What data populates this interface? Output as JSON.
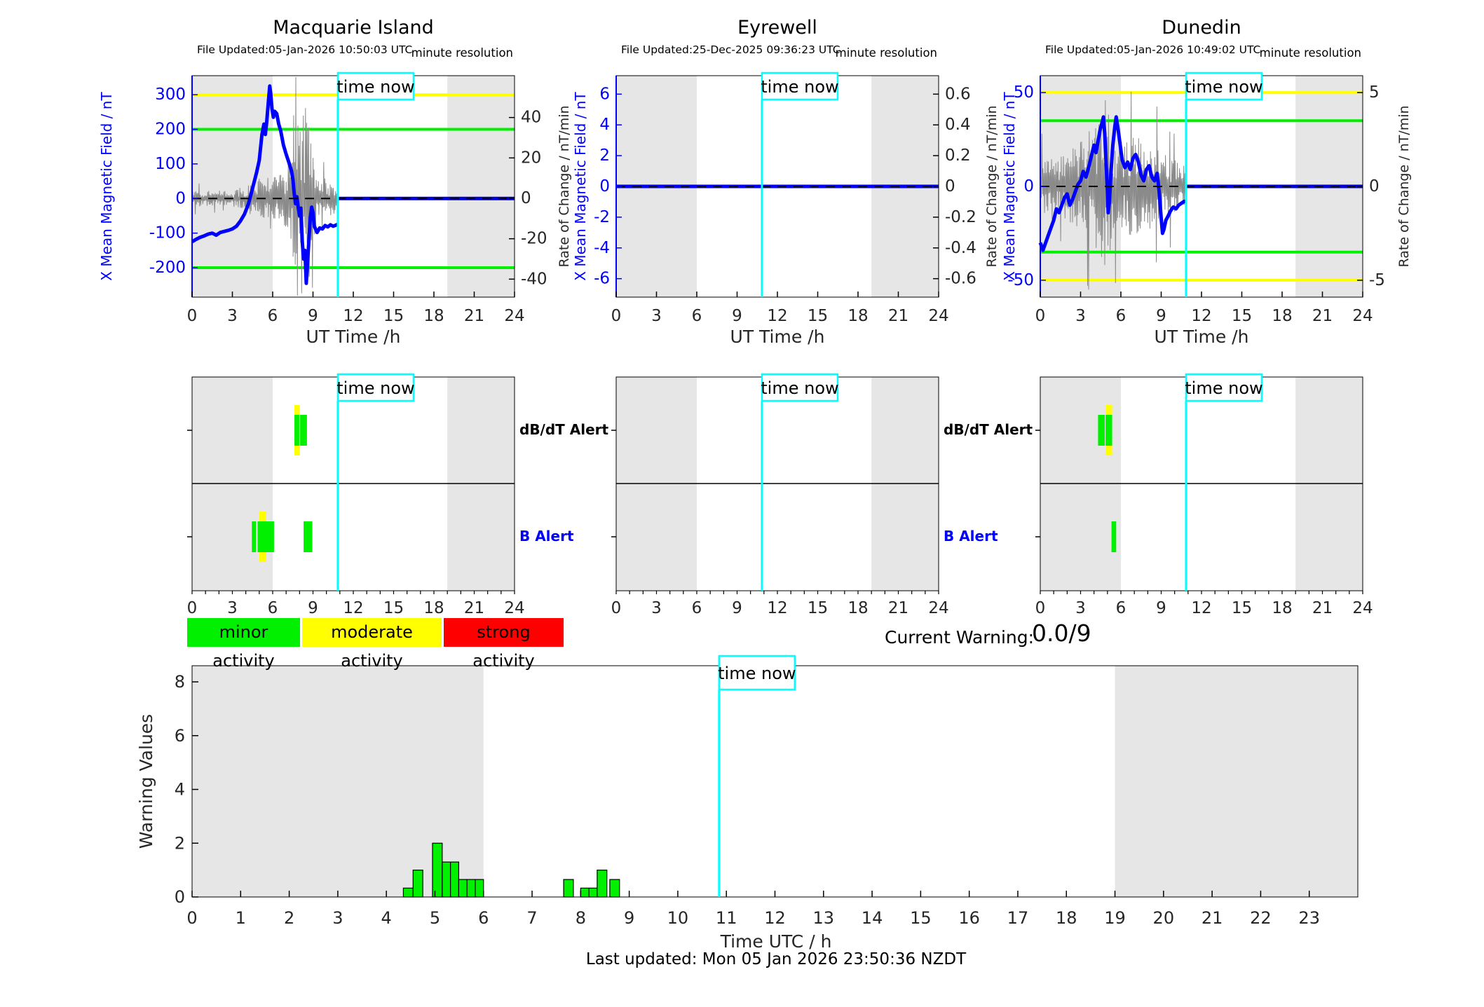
{
  "chart_data": {
    "time_now": {
      "label": "time now",
      "hour": 10.85
    },
    "night_shading_hours": [
      [
        0,
        6
      ],
      [
        19,
        24
      ]
    ],
    "stations": [
      {
        "name": "Macquarie Island",
        "file_updated": "File Updated:05-Jan-2026 10:50:03 UTC",
        "resolution": "minute resolution",
        "type": "line",
        "x_axis": {
          "label": "UT Time /h",
          "ticks": [
            0,
            3,
            6,
            9,
            12,
            15,
            18,
            21,
            24
          ],
          "range": [
            0,
            24
          ]
        },
        "y_left": {
          "label": "X Mean Magnetic Field / nT",
          "ticks": [
            300,
            200,
            100,
            0,
            -100,
            -200
          ],
          "range": [
            -285,
            355
          ]
        },
        "y_right": {
          "label": "Rate of Change / nT/min",
          "ticks": [
            40,
            20,
            0,
            -20,
            -40
          ],
          "range": [
            -48.9,
            60.7
          ]
        },
        "thresholds": [
          {
            "value": 300,
            "color": "#ffff00"
          },
          {
            "value": 200,
            "color": "#00f000"
          },
          {
            "value": -200,
            "color": "#00f000"
          }
        ],
        "mean_field_line": [
          [
            0,
            -125
          ],
          [
            0.3,
            -118
          ],
          [
            0.6,
            -112
          ],
          [
            0.9,
            -108
          ],
          [
            1.2,
            -103
          ],
          [
            1.5,
            -100
          ],
          [
            1.8,
            -106
          ],
          [
            2.1,
            -98
          ],
          [
            2.4,
            -95
          ],
          [
            2.7,
            -92
          ],
          [
            3.0,
            -88
          ],
          [
            3.3,
            -80
          ],
          [
            3.6,
            -65
          ],
          [
            3.9,
            -45
          ],
          [
            4.2,
            -15
          ],
          [
            4.5,
            30
          ],
          [
            4.8,
            75
          ],
          [
            5.0,
            110
          ],
          [
            5.2,
            185
          ],
          [
            5.35,
            215
          ],
          [
            5.45,
            185
          ],
          [
            5.55,
            220
          ],
          [
            5.7,
            290
          ],
          [
            5.78,
            325
          ],
          [
            5.85,
            305
          ],
          [
            5.95,
            260
          ],
          [
            6.05,
            235
          ],
          [
            6.15,
            252
          ],
          [
            6.3,
            245
          ],
          [
            6.45,
            215
          ],
          [
            6.6,
            195
          ],
          [
            6.8,
            155
          ],
          [
            7.0,
            128
          ],
          [
            7.2,
            105
          ],
          [
            7.4,
            80
          ],
          [
            7.5,
            55
          ],
          [
            7.6,
            15
          ],
          [
            7.7,
            -15
          ],
          [
            7.8,
            5
          ],
          [
            7.9,
            -25
          ],
          [
            8.0,
            -50
          ],
          [
            8.1,
            -28
          ],
          [
            8.2,
            -125
          ],
          [
            8.3,
            -175
          ],
          [
            8.4,
            -150
          ],
          [
            8.5,
            -245
          ],
          [
            8.6,
            -185
          ],
          [
            8.7,
            -115
          ],
          [
            8.8,
            -55
          ],
          [
            8.9,
            -25
          ],
          [
            9.0,
            -40
          ],
          [
            9.1,
            -80
          ],
          [
            9.3,
            -98
          ],
          [
            9.5,
            -85
          ],
          [
            9.7,
            -88
          ],
          [
            9.9,
            -78
          ],
          [
            10.1,
            -82
          ],
          [
            10.3,
            -76
          ],
          [
            10.5,
            -80
          ],
          [
            10.7,
            -77
          ],
          [
            10.85,
            -74
          ]
        ],
        "flat_zero_from_hour": 10.88,
        "rate_noise_envelope": [
          [
            0,
            22
          ],
          [
            3.5,
            25
          ],
          [
            4.3,
            45
          ],
          [
            5.0,
            60
          ],
          [
            5.8,
            55
          ],
          [
            6.4,
            70
          ],
          [
            7.0,
            90
          ],
          [
            7.4,
            150
          ],
          [
            7.6,
            290
          ],
          [
            8.0,
            300
          ],
          [
            8.4,
            280
          ],
          [
            8.8,
            260
          ],
          [
            9.0,
            120
          ],
          [
            9.4,
            70
          ],
          [
            10.0,
            55
          ],
          [
            10.85,
            45
          ]
        ],
        "alerts": {
          "dbdt": {
            "green": [
              [
                7.62,
                7.98
              ],
              [
                8.04,
                8.55
              ]
            ],
            "yellow": [
              [
                7.62,
                8.02
              ]
            ]
          },
          "b": {
            "green": [
              [
                4.45,
                4.75
              ],
              [
                4.88,
                6.1
              ],
              [
                8.3,
                8.95
              ]
            ],
            "yellow": [
              [
                5.0,
                5.5
              ]
            ]
          }
        }
      },
      {
        "name": "Eyrewell",
        "file_updated": "File Updated:25-Dec-2025 09:36:23 UTC",
        "resolution": "minute resolution",
        "type": "line",
        "x_axis": {
          "label": "UT Time /h",
          "ticks": [
            0,
            3,
            6,
            9,
            12,
            15,
            18,
            21,
            24
          ],
          "range": [
            0,
            24
          ]
        },
        "y_left": {
          "label": "X Mean Magnetic Field / nT",
          "ticks": [
            6,
            4,
            2,
            0,
            -2,
            -4,
            -6
          ],
          "range": [
            -7.2,
            7.2
          ]
        },
        "y_right": {
          "label": "Rate of Change / nT/min",
          "ticks": [
            0.6,
            0.4,
            0.2,
            0,
            -0.2,
            -0.4,
            -0.6
          ],
          "range": [
            -0.72,
            0.72
          ]
        },
        "thresholds": [],
        "mean_field_line": [
          [
            0,
            0
          ],
          [
            24,
            0
          ]
        ],
        "flat_zero_from_hour": null,
        "rate_noise_envelope": null,
        "alerts": {
          "dbdt": {
            "green": [],
            "yellow": []
          },
          "b": {
            "green": [],
            "yellow": []
          }
        }
      },
      {
        "name": "Dunedin",
        "file_updated": "File Updated:05-Jan-2026 10:49:02 UTC",
        "resolution": "minute resolution",
        "type": "line",
        "x_axis": {
          "label": "UT Time /h",
          "ticks": [
            0,
            3,
            6,
            9,
            12,
            15,
            18,
            21,
            24
          ],
          "range": [
            0,
            24
          ]
        },
        "y_left": {
          "label": "X Mean Magnetic Field / nT",
          "ticks": [
            50,
            0,
            -50
          ],
          "range": [
            -59,
            59
          ]
        },
        "y_right": {
          "label": "Rate of Change / nT/min",
          "ticks": [
            5,
            0,
            -5
          ],
          "range": [
            -5.9,
            5.9
          ]
        },
        "thresholds": [
          {
            "value": 50,
            "color": "#ffff00"
          },
          {
            "value": -50,
            "color": "#ffff00"
          },
          {
            "value": 35,
            "color": "#00f000"
          },
          {
            "value": -35,
            "color": "#00f000"
          }
        ],
        "mean_field_line": [
          [
            0,
            -30
          ],
          [
            0.2,
            -34
          ],
          [
            0.4,
            -30
          ],
          [
            0.6,
            -26
          ],
          [
            0.8,
            -22
          ],
          [
            1.0,
            -18
          ],
          [
            1.2,
            -12
          ],
          [
            1.4,
            -14
          ],
          [
            1.6,
            -10
          ],
          [
            1.8,
            -6
          ],
          [
            2.0,
            -4
          ],
          [
            2.2,
            -10
          ],
          [
            2.4,
            -7
          ],
          [
            2.6,
            -3
          ],
          [
            2.8,
            1
          ],
          [
            3.0,
            3
          ],
          [
            3.2,
            8
          ],
          [
            3.4,
            5
          ],
          [
            3.6,
            10
          ],
          [
            3.8,
            16
          ],
          [
            4.0,
            22
          ],
          [
            4.15,
            18
          ],
          [
            4.3,
            24
          ],
          [
            4.45,
            30
          ],
          [
            4.6,
            34
          ],
          [
            4.7,
            37
          ],
          [
            4.8,
            28
          ],
          [
            4.9,
            12
          ],
          [
            5.0,
            -2
          ],
          [
            5.05,
            -14
          ],
          [
            5.15,
            -8
          ],
          [
            5.25,
            6
          ],
          [
            5.4,
            22
          ],
          [
            5.55,
            32
          ],
          [
            5.65,
            37
          ],
          [
            5.8,
            30
          ],
          [
            5.95,
            22
          ],
          [
            6.1,
            14
          ],
          [
            6.3,
            10
          ],
          [
            6.5,
            13
          ],
          [
            6.7,
            9
          ],
          [
            6.9,
            15
          ],
          [
            7.1,
            17
          ],
          [
            7.3,
            13
          ],
          [
            7.5,
            6
          ],
          [
            7.7,
            3
          ],
          [
            7.9,
            9
          ],
          [
            8.1,
            11
          ],
          [
            8.3,
            5
          ],
          [
            8.5,
            3
          ],
          [
            8.7,
            7
          ],
          [
            8.85,
            -3
          ],
          [
            9.0,
            -17
          ],
          [
            9.1,
            -25
          ],
          [
            9.2,
            -23
          ],
          [
            9.35,
            -18
          ],
          [
            9.5,
            -16
          ],
          [
            9.7,
            -13
          ],
          [
            9.9,
            -11
          ],
          [
            10.1,
            -12
          ],
          [
            10.3,
            -10
          ],
          [
            10.5,
            -9
          ],
          [
            10.7,
            -8
          ],
          [
            10.85,
            -8
          ]
        ],
        "flat_zero_from_hour": 10.88,
        "rate_noise_envelope": [
          [
            0,
            14
          ],
          [
            1.5,
            17
          ],
          [
            2.5,
            20
          ],
          [
            3.5,
            28
          ],
          [
            4.2,
            38
          ],
          [
            4.6,
            55
          ],
          [
            4.9,
            50
          ],
          [
            5.3,
            32
          ],
          [
            6.0,
            24
          ],
          [
            7.0,
            27
          ],
          [
            8.0,
            24
          ],
          [
            9.0,
            18
          ],
          [
            10.0,
            14
          ],
          [
            10.85,
            11
          ]
        ],
        "alerts": {
          "dbdt": {
            "green": [
              [
                4.3,
                4.8
              ],
              [
                4.86,
                5.35
              ]
            ],
            "yellow": [
              [
                4.86,
                5.35
              ]
            ]
          },
          "b": {
            "green": [
              [
                5.3,
                5.65
              ]
            ],
            "yellow": []
          }
        }
      }
    ],
    "alert_row_labels": {
      "dbdt": "dB/dT Alert",
      "b": "B Alert"
    },
    "activity_legend": [
      {
        "label": "minor activity",
        "color": "#00f000"
      },
      {
        "label": "moderate activity",
        "color": "#ffff00"
      },
      {
        "label": "strong activity",
        "color": "#ff0000"
      }
    ],
    "current_warning": {
      "label": "Current Warning:",
      "value": "0.0/9"
    },
    "warning_chart": {
      "type": "bar",
      "ylabel": "Warning Values",
      "xlabel": "Time UTC / h",
      "yticks": [
        0,
        2,
        4,
        6,
        8
      ],
      "ylim": [
        0,
        8.6
      ],
      "xticks": [
        0,
        1,
        2,
        3,
        4,
        5,
        6,
        7,
        8,
        9,
        10,
        11,
        12,
        13,
        14,
        15,
        16,
        17,
        18,
        19,
        20,
        21,
        22,
        23
      ],
      "xlim": [
        0,
        24
      ],
      "bar_color": "#00f000",
      "bars": [
        {
          "x": 4.35,
          "w": 0.2,
          "h": 0.33
        },
        {
          "x": 4.55,
          "w": 0.2,
          "h": 1.0
        },
        {
          "x": 4.95,
          "w": 0.2,
          "h": 2.0
        },
        {
          "x": 5.15,
          "w": 0.17,
          "h": 1.3
        },
        {
          "x": 5.32,
          "w": 0.17,
          "h": 1.3
        },
        {
          "x": 5.49,
          "w": 0.17,
          "h": 0.65
        },
        {
          "x": 5.66,
          "w": 0.17,
          "h": 0.65
        },
        {
          "x": 5.83,
          "w": 0.17,
          "h": 0.65
        },
        {
          "x": 7.65,
          "w": 0.2,
          "h": 0.65
        },
        {
          "x": 8.0,
          "w": 0.17,
          "h": 0.33
        },
        {
          "x": 8.17,
          "w": 0.17,
          "h": 0.33
        },
        {
          "x": 8.34,
          "w": 0.2,
          "h": 1.0
        },
        {
          "x": 8.6,
          "w": 0.2,
          "h": 0.65
        }
      ]
    },
    "footer": "Last updated: Mon 05 Jan 2026 23:50:36 NZDT",
    "colors": {
      "night_band": "#e6e6e6",
      "mean_field_line": "#0000ff",
      "flat_line": "#0000d8",
      "noise_trace": "#8a8a8a",
      "time_now": "#00ffff",
      "minor": "#00f000",
      "moderate": "#ffff00",
      "strong": "#ff0000",
      "tick_text": "#262626",
      "blue_text": "#0000ff"
    }
  }
}
